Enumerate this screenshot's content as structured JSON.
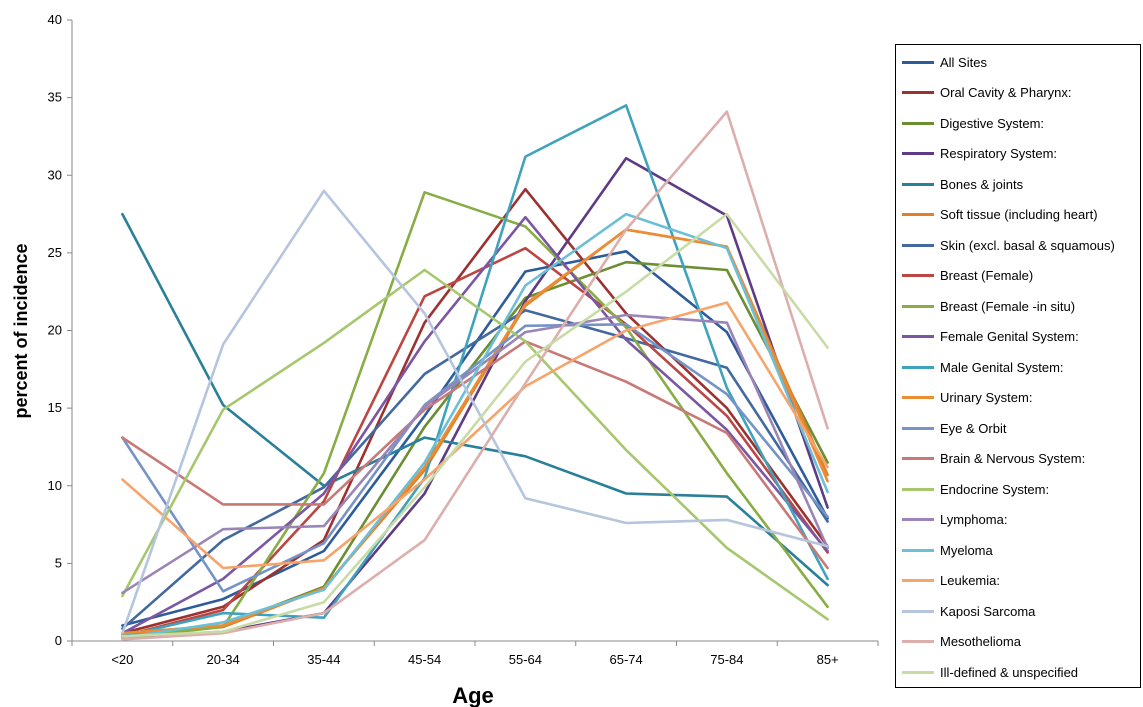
{
  "chart_data": {
    "type": "line",
    "title": "",
    "xlabel": "Age",
    "ylabel": "percent of incidence",
    "categories": [
      "<20",
      "20-34",
      "35-44",
      "45-54",
      "55-64",
      "65-74",
      "75-84",
      "85+"
    ],
    "ylim": [
      0,
      40
    ],
    "yticks": [
      0,
      5,
      10,
      15,
      20,
      25,
      30,
      35,
      40
    ],
    "grid": false,
    "legend_position": "right",
    "series": [
      {
        "name": "All Sites",
        "color": "#2e5c9a",
        "values": [
          1.0,
          2.7,
          5.8,
          14.5,
          23.8,
          25.1,
          19.9,
          7.9
        ]
      },
      {
        "name": "Oral Cavity & Pharynx:",
        "color": "#9b3230",
        "values": [
          0.5,
          2.2,
          6.5,
          20.5,
          29.1,
          21.1,
          15.0,
          6.1
        ]
      },
      {
        "name": "Digestive System:",
        "color": "#6b8e32",
        "values": [
          0.5,
          1.0,
          3.5,
          13.8,
          22.1,
          24.4,
          23.9,
          11.5
        ]
      },
      {
        "name": "Respiratory System:",
        "color": "#5e3b85",
        "values": [
          0.2,
          0.6,
          1.8,
          9.5,
          21.9,
          31.1,
          27.4,
          8.6
        ]
      },
      {
        "name": "Bones & joints",
        "color": "#2a8098",
        "values": [
          27.5,
          15.2,
          10.0,
          13.1,
          11.9,
          9.5,
          9.3,
          3.6
        ]
      },
      {
        "name": "Soft tissue (including heart)",
        "color": "#e0812a",
        "values": [
          0.4,
          0.9,
          3.4,
          11.0,
          21.6,
          26.5,
          25.4,
          10.7
        ]
      },
      {
        "name": "Skin (excl. basal & squamous)",
        "color": "#43699f",
        "values": [
          0.8,
          6.5,
          9.9,
          17.2,
          21.3,
          19.5,
          17.6,
          7.7
        ]
      },
      {
        "name": "Breast (Female)",
        "color": "#bb4643",
        "values": [
          0.3,
          2.0,
          9.0,
          22.2,
          25.3,
          20.4,
          14.5,
          5.7
        ]
      },
      {
        "name": "Breast (Female -in situ)",
        "color": "#88ad45",
        "values": [
          0.2,
          0.9,
          10.8,
          28.9,
          26.7,
          20.2,
          10.8,
          2.2
        ]
      },
      {
        "name": "Female Genital System:",
        "color": "#7a56a3",
        "values": [
          0.5,
          4.0,
          9.5,
          19.3,
          27.3,
          19.4,
          13.6,
          5.8
        ]
      },
      {
        "name": "Male Genital System:",
        "color": "#3fa3bd",
        "values": [
          0.3,
          1.8,
          1.5,
          10.5,
          31.2,
          34.5,
          16.3,
          4.0
        ]
      },
      {
        "name": "Urinary System:",
        "color": "#ea8d35",
        "values": [
          0.5,
          1.0,
          3.4,
          11.2,
          21.7,
          26.5,
          25.4,
          10.3
        ]
      },
      {
        "name": "Eye & Orbit",
        "color": "#7593c7",
        "values": [
          13.1,
          3.2,
          6.3,
          15.2,
          20.3,
          20.4,
          15.9,
          8.0
        ]
      },
      {
        "name": "Brain & Nervous System:",
        "color": "#c87976",
        "values": [
          13.1,
          8.8,
          8.8,
          14.9,
          19.3,
          16.7,
          13.4,
          4.7
        ]
      },
      {
        "name": "Endocrine System:",
        "color": "#a7c76e",
        "values": [
          2.9,
          14.9,
          19.2,
          23.9,
          19.3,
          12.3,
          6.0,
          1.4
        ]
      },
      {
        "name": "Lymphoma:",
        "color": "#9a85b6",
        "values": [
          3.1,
          7.2,
          7.4,
          15.1,
          19.9,
          21.0,
          20.5,
          6.0
        ]
      },
      {
        "name": "Myeloma",
        "color": "#6cbfd6",
        "values": [
          0.2,
          1.2,
          3.3,
          11.5,
          22.9,
          27.5,
          25.3,
          9.6
        ]
      },
      {
        "name": "Leukemia:",
        "color": "#f5a56b",
        "values": [
          10.4,
          4.7,
          5.2,
          10.4,
          16.4,
          20.0,
          21.8,
          11.2
        ]
      },
      {
        "name": "Kaposi Sarcoma",
        "color": "#b5c5de",
        "values": [
          0.5,
          19.1,
          29.0,
          21.1,
          9.2,
          7.6,
          7.8,
          6.1
        ]
      },
      {
        "name": "Mesothelioma",
        "color": "#dcaeac",
        "values": [
          0.1,
          0.5,
          1.8,
          6.5,
          16.6,
          26.5,
          34.1,
          13.7
        ]
      },
      {
        "name": "Ill-defined & unspecified",
        "color": "#c8dba7",
        "values": [
          0.3,
          0.6,
          2.5,
          9.9,
          18.0,
          22.5,
          27.5,
          18.9
        ]
      }
    ]
  }
}
